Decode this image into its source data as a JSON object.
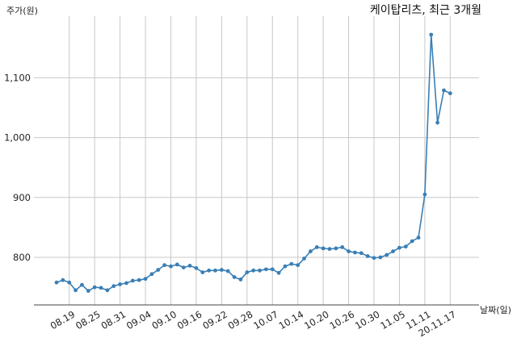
{
  "chart_data": {
    "type": "line",
    "title": "케이탑리츠, 최근 3개월",
    "ylabel": "주가(원)",
    "xlabel": "날짜(일)",
    "ylim": [
      725,
      1200
    ],
    "yticks": [
      800,
      900,
      1000,
      1100
    ],
    "ytick_labels": [
      "800",
      "900",
      "1,000",
      "1,100"
    ],
    "xtick_labels": [
      "08.19",
      "08.25",
      "08.31",
      "09.04",
      "09.10",
      "09.16",
      "09.22",
      "09.28",
      "10.07",
      "10.14",
      "10.20",
      "10.26",
      "10.30",
      "11.05",
      "11.11",
      "20.11.17"
    ],
    "xtick_indices": [
      2,
      6,
      10,
      14,
      18,
      22,
      26,
      30,
      34,
      38,
      42,
      46,
      50,
      54,
      58,
      62
    ],
    "grid": true,
    "line_color": "#3a7fb5",
    "series": [
      {
        "values": [
          758,
          762,
          758,
          745,
          754,
          744,
          750,
          749,
          745,
          752,
          755,
          757,
          761,
          762,
          764,
          772,
          779,
          787,
          785,
          788,
          783,
          786,
          782,
          775,
          778,
          778,
          779,
          777,
          767,
          763,
          775,
          778,
          778,
          780,
          780,
          774,
          785,
          789,
          787,
          798,
          810,
          817,
          815,
          814,
          815,
          817,
          810,
          808,
          807,
          802,
          799,
          800,
          804,
          810,
          816,
          818,
          827,
          833,
          905,
          1172,
          1025,
          1079,
          1074
        ]
      }
    ]
  }
}
